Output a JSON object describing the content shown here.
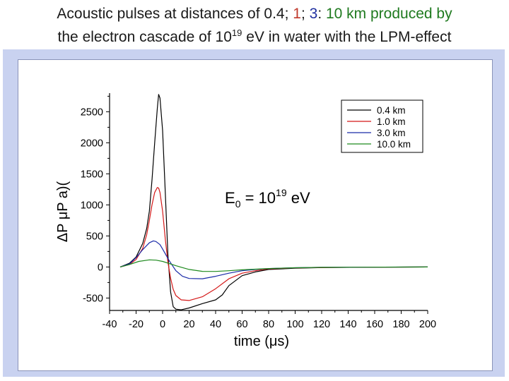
{
  "slide": {
    "title_line1_prefix": "Acoustic pulses at distances of ",
    "title_d1": "0.4",
    "title_sep1": "; ",
    "title_d2": "1",
    "title_sep2": "; ",
    "title_d3": "3",
    "title_sep3": ": ",
    "title_line1_suffix": "10 km produced by",
    "title_line2_prefix": "the electron cascade of 10",
    "title_line2_exp": "19",
    "title_line2_suffix": " eV in water with the LPM-effect"
  },
  "chart_data": {
    "type": "line",
    "xlabel": "time (μs)",
    "ylabel": "ΔP μP a)(",
    "xlim": [
      -40,
      200
    ],
    "ylim": [
      -700,
      2800
    ],
    "x_ticks": [
      "-40",
      "-20",
      "0",
      "20",
      "40",
      "60",
      "80",
      "100",
      "120",
      "140",
      "160",
      "180",
      "200"
    ],
    "y_ticks": [
      "-500",
      "0",
      "500",
      "1000",
      "1500",
      "2000",
      "2500"
    ],
    "annotation": {
      "base": "E",
      "sub": "0",
      "mid": " = 10",
      "exp": "19",
      "tail": " eV"
    },
    "legend_position": "top-right",
    "grid": false,
    "series": [
      {
        "name": "0.4 km",
        "color": "#000000",
        "points": [
          [
            -32,
            0
          ],
          [
            -25,
            60
          ],
          [
            -20,
            160
          ],
          [
            -15,
            380
          ],
          [
            -12,
            620
          ],
          [
            -10,
            900
          ],
          [
            -8,
            1400
          ],
          [
            -6,
            2000
          ],
          [
            -4,
            2550
          ],
          [
            -3,
            2780
          ],
          [
            -2,
            2720
          ],
          [
            0,
            2200
          ],
          [
            2,
            1200
          ],
          [
            4,
            200
          ],
          [
            6,
            -400
          ],
          [
            8,
            -640
          ],
          [
            10,
            -680
          ],
          [
            14,
            -690
          ],
          [
            20,
            -660
          ],
          [
            30,
            -590
          ],
          [
            40,
            -530
          ],
          [
            45,
            -450
          ],
          [
            50,
            -300
          ],
          [
            60,
            -140
          ],
          [
            70,
            -80
          ],
          [
            80,
            -40
          ],
          [
            100,
            -20
          ],
          [
            120,
            -10
          ],
          [
            150,
            -5
          ],
          [
            200,
            0
          ]
        ]
      },
      {
        "name": "1.0 km",
        "color": "#d41818",
        "points": [
          [
            -32,
            0
          ],
          [
            -25,
            40
          ],
          [
            -20,
            120
          ],
          [
            -15,
            300
          ],
          [
            -12,
            520
          ],
          [
            -10,
            750
          ],
          [
            -8,
            1000
          ],
          [
            -6,
            1200
          ],
          [
            -4,
            1280
          ],
          [
            -3,
            1270
          ],
          [
            -2,
            1200
          ],
          [
            0,
            900
          ],
          [
            2,
            450
          ],
          [
            4,
            80
          ],
          [
            6,
            -180
          ],
          [
            8,
            -360
          ],
          [
            10,
            -460
          ],
          [
            14,
            -530
          ],
          [
            20,
            -540
          ],
          [
            30,
            -480
          ],
          [
            40,
            -350
          ],
          [
            50,
            -190
          ],
          [
            60,
            -100
          ],
          [
            70,
            -60
          ],
          [
            80,
            -30
          ],
          [
            100,
            -15
          ],
          [
            120,
            -8
          ],
          [
            150,
            -4
          ],
          [
            200,
            0
          ]
        ]
      },
      {
        "name": "3.0 km",
        "color": "#1a2aa8",
        "points": [
          [
            -32,
            0
          ],
          [
            -25,
            50
          ],
          [
            -20,
            150
          ],
          [
            -15,
            280
          ],
          [
            -10,
            390
          ],
          [
            -7,
            420
          ],
          [
            -5,
            410
          ],
          [
            -2,
            360
          ],
          [
            0,
            290
          ],
          [
            5,
            100
          ],
          [
            10,
            -60
          ],
          [
            15,
            -150
          ],
          [
            20,
            -185
          ],
          [
            30,
            -190
          ],
          [
            40,
            -150
          ],
          [
            50,
            -100
          ],
          [
            60,
            -60
          ],
          [
            70,
            -40
          ],
          [
            80,
            -25
          ],
          [
            100,
            -12
          ],
          [
            120,
            -6
          ],
          [
            150,
            -3
          ],
          [
            200,
            0
          ]
        ]
      },
      {
        "name": "10.0 km",
        "color": "#1f8a1f",
        "points": [
          [
            -32,
            0
          ],
          [
            -25,
            40
          ],
          [
            -18,
            90
          ],
          [
            -10,
            115
          ],
          [
            -5,
            110
          ],
          [
            0,
            90
          ],
          [
            10,
            20
          ],
          [
            20,
            -40
          ],
          [
            30,
            -70
          ],
          [
            40,
            -72
          ],
          [
            50,
            -60
          ],
          [
            60,
            -45
          ],
          [
            80,
            -25
          ],
          [
            100,
            -12
          ],
          [
            120,
            -6
          ],
          [
            150,
            -3
          ],
          [
            200,
            0
          ]
        ]
      }
    ]
  }
}
